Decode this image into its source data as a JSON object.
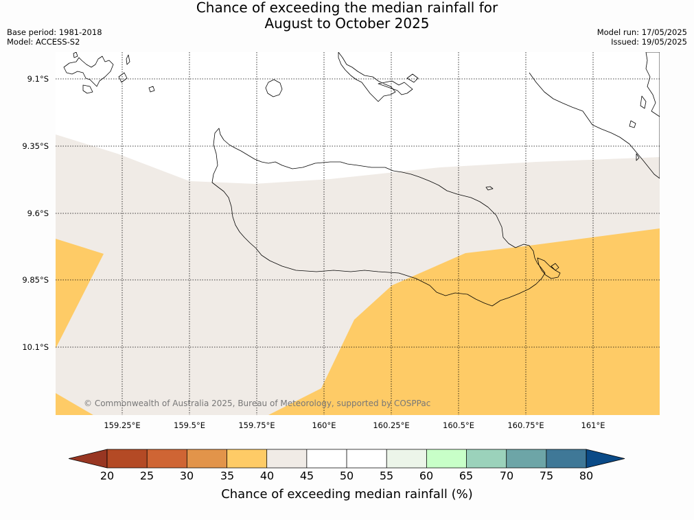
{
  "title": {
    "line1": "Chance of exceeding the median rainfall for",
    "line2": "August to October 2025"
  },
  "meta": {
    "base_period": "Base period: 1981-2018",
    "model": "Model: ACCESS-S2",
    "model_run": "Model run: 17/05/2025",
    "issued": "Issued: 19/05/2025"
  },
  "map": {
    "lat_labels": [
      "9.1°S",
      "9.35°S",
      "9.6°S",
      "9.85°S",
      "10.1°S"
    ],
    "lon_labels": [
      "159.25°E",
      "159.5°E",
      "159.75°E",
      "160°E",
      "160.25°E",
      "160.5°E",
      "160.75°E",
      "161°E"
    ],
    "credit": "© Commonwealth of Australia 2025, Bureau of Meteorology, supported by COSPPac",
    "regions": [
      {
        "category": "35-40",
        "color": "#fecb66"
      },
      {
        "category": "40-45",
        "color": "#f0ebe6"
      },
      {
        "category": "45-50",
        "color": "#ffffff"
      }
    ]
  },
  "colorbar": {
    "label": "Chance of exceeding median rainfall (%)",
    "ticks": [
      "20",
      "25",
      "30",
      "35",
      "40",
      "45",
      "50",
      "55",
      "60",
      "65",
      "70",
      "75",
      "80"
    ],
    "colors": [
      "#983622",
      "#b44a25",
      "#cf6534",
      "#e2944a",
      "#fecb66",
      "#f0ebe6",
      "#ffffff",
      "#ffffff",
      "#ecf5e9",
      "#c8ffc8",
      "#9bd2bb",
      "#6da5a7",
      "#3f7897",
      "#0a4a87"
    ]
  }
}
